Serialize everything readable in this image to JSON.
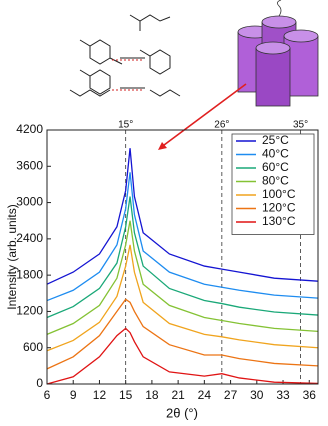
{
  "chart_data": {
    "type": "line",
    "xlabel": "2θ (°)",
    "ylabel": "Intensity (arb. units)",
    "x": [
      6,
      9,
      12,
      14,
      15,
      15.5,
      16,
      17,
      20,
      24,
      26,
      28,
      32,
      37
    ],
    "series": [
      {
        "name": "25°C",
        "color": "#1414d2",
        "values": [
          1650,
          1850,
          2150,
          2600,
          3200,
          3900,
          3100,
          2500,
          2150,
          1950,
          1900,
          1850,
          1750,
          1700
        ]
      },
      {
        "name": "40°C",
        "color": "#1e8cf0",
        "values": [
          1380,
          1550,
          1850,
          2300,
          2900,
          3500,
          2800,
          2200,
          1850,
          1650,
          1600,
          1550,
          1470,
          1420
        ]
      },
      {
        "name": "60°C",
        "color": "#1aa878",
        "values": [
          1100,
          1280,
          1580,
          2000,
          2600,
          3100,
          2500,
          1950,
          1580,
          1380,
          1330,
          1270,
          1190,
          1140
        ]
      },
      {
        "name": "80°C",
        "color": "#84c234",
        "values": [
          820,
          1000,
          1300,
          1750,
          2300,
          2700,
          2200,
          1650,
          1300,
          1100,
          1050,
          1000,
          920,
          870
        ]
      },
      {
        "name": "100°C",
        "color": "#f0a41e",
        "values": [
          550,
          720,
          1020,
          1450,
          1950,
          2300,
          1850,
          1350,
          1000,
          820,
          780,
          730,
          650,
          600
        ]
      },
      {
        "name": "120°C",
        "color": "#ec7414",
        "values": [
          250,
          450,
          800,
          1200,
          1400,
          1350,
          1200,
          950,
          650,
          480,
          480,
          420,
          340,
          300
        ]
      },
      {
        "name": "130°C",
        "color": "#e01414",
        "values": [
          0,
          120,
          450,
          800,
          920,
          850,
          700,
          450,
          200,
          130,
          170,
          100,
          30,
          10
        ]
      }
    ],
    "xlim": [
      6,
      37
    ],
    "xticks": [
      6,
      9,
      12,
      15,
      18,
      21,
      24,
      27,
      30,
      33,
      36
    ],
    "ylim": [
      0,
      4200
    ],
    "yticks": [
      0,
      600,
      1200,
      1800,
      2400,
      3000,
      3600,
      4200
    ],
    "annotations": [
      {
        "x": 15,
        "label": "15°"
      },
      {
        "x": 26,
        "label": "26°"
      },
      {
        "x": 35,
        "label": "35°"
      }
    ],
    "legend": "upper right",
    "grid": false
  }
}
